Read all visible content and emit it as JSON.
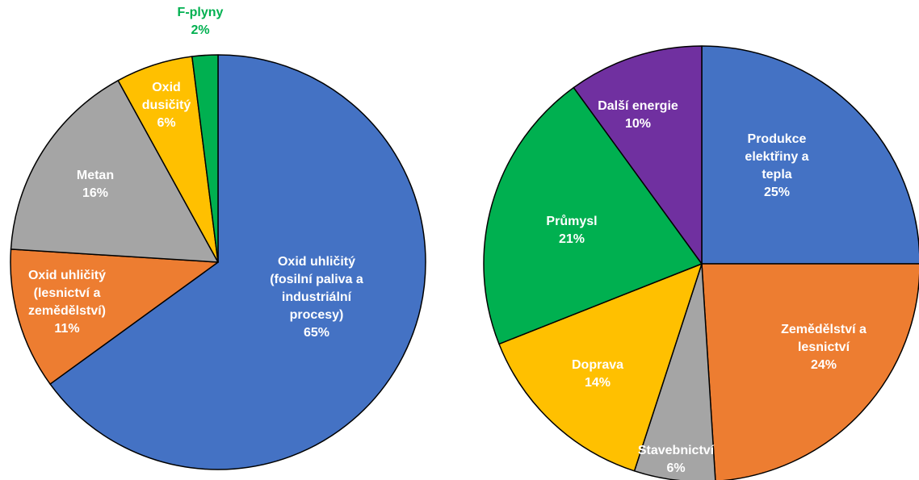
{
  "chart_data": [
    {
      "type": "pie",
      "title": "",
      "slices": [
        {
          "label_lines": [
            "Oxid uhličitý",
            "(fosilní paliva a",
            "industriální",
            "procesy)"
          ],
          "percent_label": "65%",
          "value": 65,
          "color": "#4472C4",
          "label_color": "#FFFFFF"
        },
        {
          "label_lines": [
            "Oxid uhličitý",
            "(lesnictví a",
            "zemědělství)"
          ],
          "percent_label": "11%",
          "value": 11,
          "color": "#ED7D31",
          "label_color": "#FFFFFF"
        },
        {
          "label_lines": [
            "Metan"
          ],
          "percent_label": "16%",
          "value": 16,
          "color": "#A5A5A5",
          "label_color": "#FFFFFF"
        },
        {
          "label_lines": [
            "Oxid",
            "dusičitý"
          ],
          "percent_label": "6%",
          "value": 6,
          "color": "#FFC000",
          "label_color": "#FFFFFF"
        },
        {
          "label_lines": [
            "F-plyny"
          ],
          "percent_label": "2%",
          "value": 2,
          "color": "#00B050",
          "label_color": "#00B050"
        }
      ]
    },
    {
      "type": "pie",
      "title": "",
      "slices": [
        {
          "label_lines": [
            "Produkce",
            "elektřiny a",
            "tepla"
          ],
          "percent_label": "25%",
          "value": 25,
          "color": "#4472C4",
          "label_color": "#FFFFFF"
        },
        {
          "label_lines": [
            "Zemědělství a",
            "lesnictví"
          ],
          "percent_label": "24%",
          "value": 24,
          "color": "#ED7D31",
          "label_color": "#FFFFFF"
        },
        {
          "label_lines": [
            "Stavebnictví"
          ],
          "percent_label": "6%",
          "value": 6,
          "color": "#A5A5A5",
          "label_color": "#FFFFFF"
        },
        {
          "label_lines": [
            "Doprava"
          ],
          "percent_label": "14%",
          "value": 14,
          "color": "#FFC000",
          "label_color": "#FFFFFF"
        },
        {
          "label_lines": [
            "Průmysl"
          ],
          "percent_label": "21%",
          "value": 21,
          "color": "#00B050",
          "label_color": "#FFFFFF"
        },
        {
          "label_lines": [
            "Další energie"
          ],
          "percent_label": "10%",
          "value": 10,
          "color": "#7030A0",
          "label_color": "#FFFFFF"
        }
      ]
    }
  ]
}
